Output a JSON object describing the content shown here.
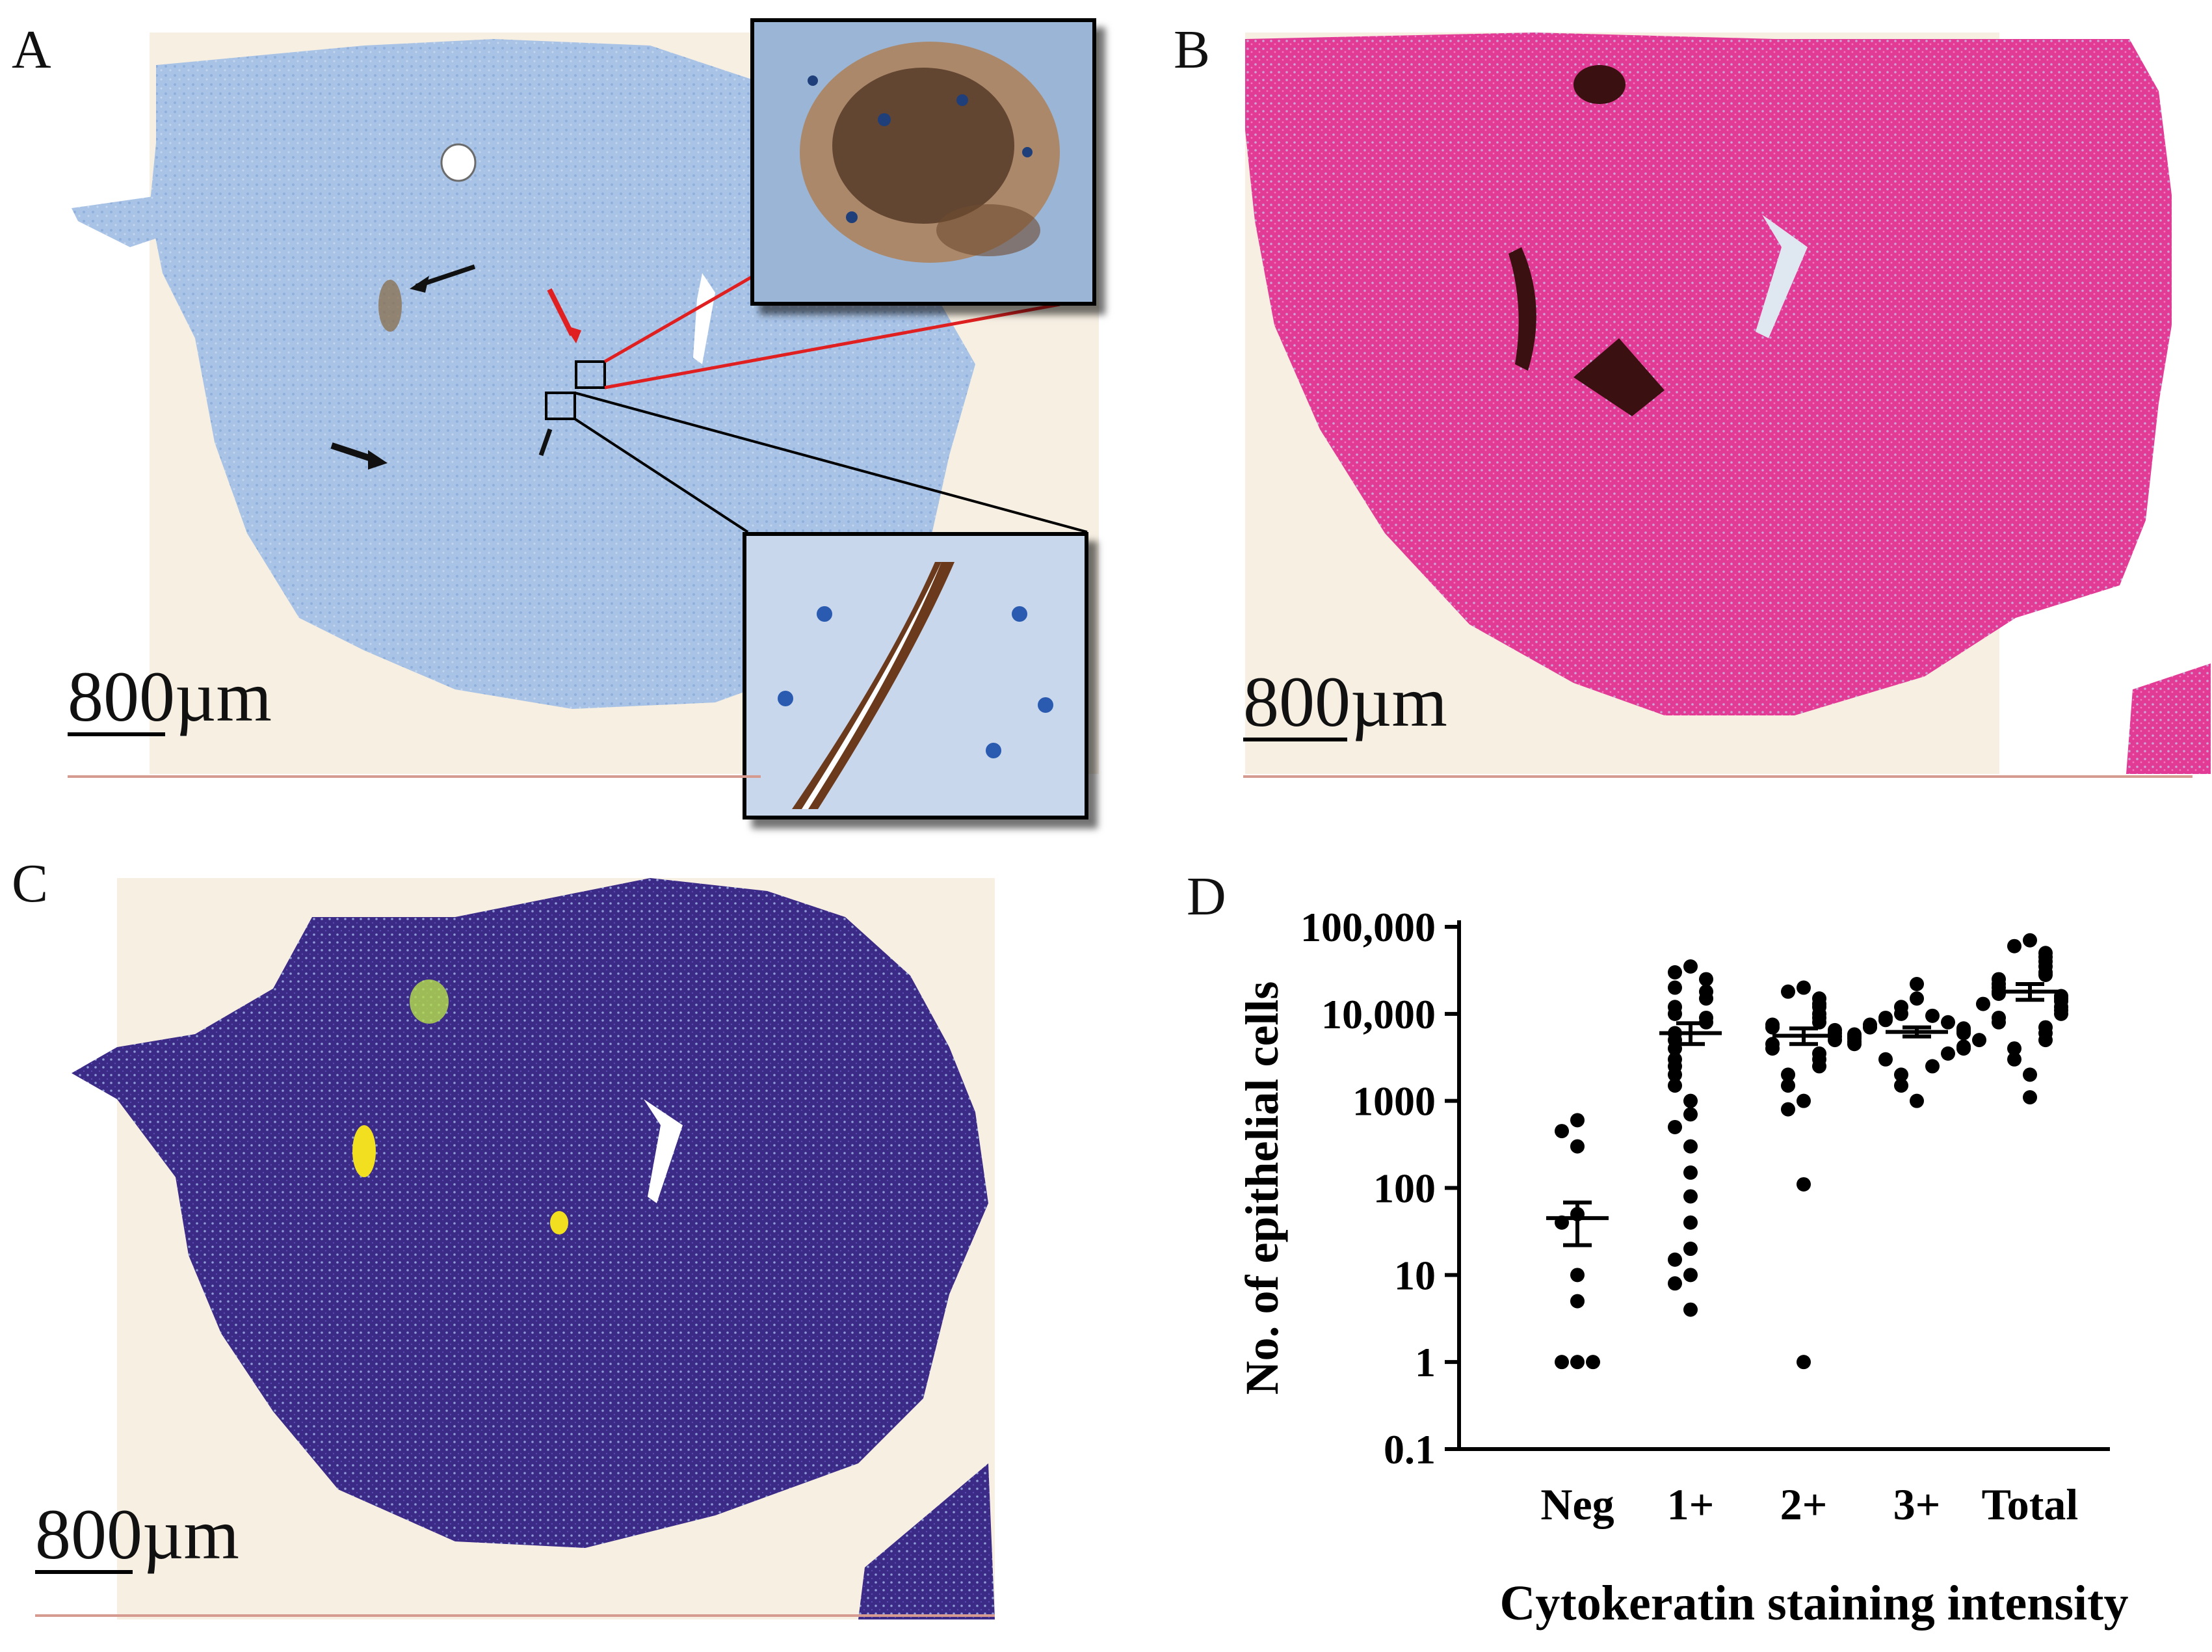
{
  "panels": {
    "a": {
      "letter": "A",
      "scale_label": "800µm"
    },
    "b": {
      "letter": "B",
      "scale_label": "800µm"
    },
    "c": {
      "letter": "C",
      "scale_label": "800µm"
    },
    "d": {
      "letter": "D"
    }
  },
  "colors": {
    "panel_a_tissue": "#a9c3e6",
    "panel_b_tissue": "#e23b95",
    "panel_c_tissue": "#3b2a86",
    "background_paper": "#f6efe2",
    "arrow_red": "#e02020",
    "arrow_black": "#111111"
  },
  "chart_data": {
    "type": "scatter",
    "xlabel": "Cytokeratin staining intensity",
    "ylabel": "No. of epithelial cells",
    "categories": [
      "Neg",
      "1+",
      "2+",
      "3+",
      "Total"
    ],
    "y_scale": "log",
    "ylim": [
      0.1,
      100000
    ],
    "yticks": [
      {
        "value": 0.1,
        "label": "0.1"
      },
      {
        "value": 1,
        "label": "1"
      },
      {
        "value": 10,
        "label": "10"
      },
      {
        "value": 100,
        "label": "100"
      },
      {
        "value": 1000,
        "label": "1000"
      },
      {
        "value": 10000,
        "label": "10,000"
      },
      {
        "value": 100000,
        "label": "100,000"
      }
    ],
    "series": [
      {
        "category": "Neg",
        "values": [
          600,
          450,
          300,
          50,
          40,
          10,
          5,
          1,
          1,
          1
        ],
        "mean": 45,
        "sem_low": 22,
        "sem_high": 68
      },
      {
        "category": "1+",
        "values": [
          35000,
          30000,
          25000,
          20000,
          18000,
          15000,
          12000,
          10000,
          9000,
          8000,
          6000,
          5000,
          4000,
          3000,
          2500,
          2000,
          1500,
          1000,
          700,
          500,
          300,
          150,
          80,
          40,
          20,
          15,
          10,
          8,
          4
        ],
        "mean": 6000,
        "sem_low": 4500,
        "sem_high": 7800
      },
      {
        "category": "2+",
        "values": [
          20000,
          18000,
          15000,
          13000,
          12000,
          10000,
          9000,
          8000,
          7500,
          7000,
          6500,
          6000,
          5500,
          5000,
          4500,
          4000,
          3500,
          3000,
          2500,
          2000,
          1500,
          1000,
          800,
          110,
          1
        ],
        "mean": 5600,
        "sem_low": 4500,
        "sem_high": 6800
      },
      {
        "category": "3+",
        "values": [
          22000,
          15000,
          12000,
          10000,
          9500,
          9000,
          8500,
          8000,
          7500,
          7000,
          6800,
          6500,
          6200,
          6000,
          5800,
          5500,
          5200,
          5000,
          4800,
          4500,
          4200,
          4000,
          3500,
          3000,
          2500,
          2000,
          1500,
          1000
        ],
        "mean": 6200,
        "sem_low": 5500,
        "sem_high": 7000
      },
      {
        "category": "Total",
        "values": [
          70000,
          60000,
          50000,
          45000,
          40000,
          35000,
          30000,
          28000,
          25000,
          22000,
          20000,
          18000,
          17000,
          16000,
          15000,
          14000,
          13000,
          12000,
          11000,
          10000,
          9000,
          8000,
          7000,
          6000,
          5000,
          4000,
          3000,
          2000,
          1100
        ],
        "mean": 18000,
        "sem_low": 14500,
        "sem_high": 22000
      }
    ]
  }
}
